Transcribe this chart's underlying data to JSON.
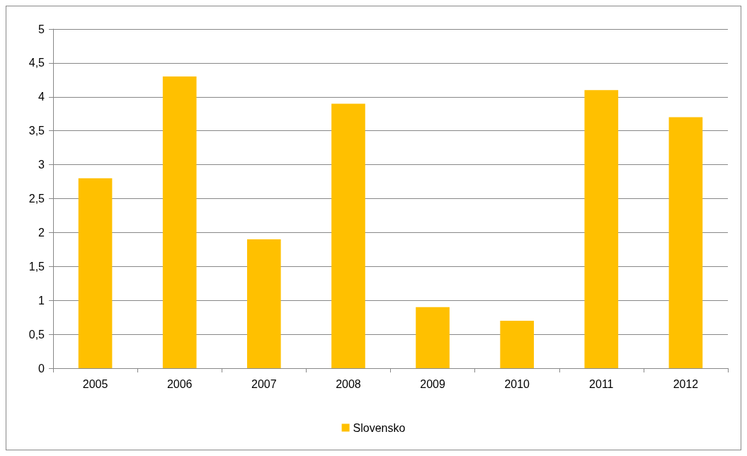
{
  "chart_data": {
    "type": "bar",
    "categories": [
      "2005",
      "2006",
      "2007",
      "2008",
      "2009",
      "2010",
      "2011",
      "2012"
    ],
    "series": [
      {
        "name": "Slovensko",
        "color": "#ffc000",
        "values": [
          2.8,
          4.3,
          1.9,
          3.9,
          0.9,
          0.7,
          4.1,
          3.7
        ]
      }
    ],
    "ylim": [
      0,
      5
    ],
    "yticks": [
      0,
      {
        "value": 0.5,
        "label": "0,5"
      },
      1,
      {
        "value": 1.5,
        "label": "1,5"
      },
      2,
      {
        "value": 2.5,
        "label": "2,5"
      },
      3,
      {
        "value": 3.5,
        "label": "3,5"
      },
      4,
      {
        "value": 4.5,
        "label": "4,5"
      },
      5
    ],
    "grid": "y",
    "legend": "bottom"
  }
}
